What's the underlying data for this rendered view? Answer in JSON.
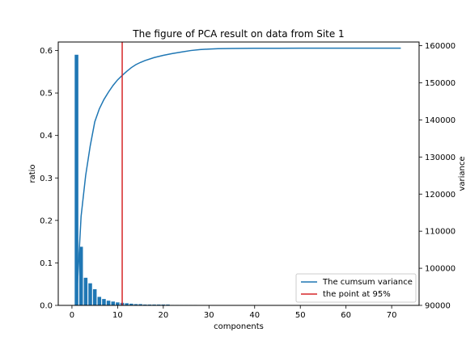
{
  "colors": {
    "bar": "#1f77b4",
    "cumsum_line": "#1f77b4",
    "vline": "#d62728",
    "axes": "#000000",
    "legend_frame": "#cccccc"
  },
  "chart_data": {
    "type": "bar",
    "title": "The figure of PCA result on data from Site 1",
    "xlabel": "components",
    "ylabel": "ratio",
    "y2label": "variance",
    "xlim": [
      -3,
      76
    ],
    "ylim": [
      0,
      0.62
    ],
    "y2lim": [
      90000,
      161000
    ],
    "xticks": [
      0,
      10,
      20,
      30,
      40,
      50,
      60,
      70
    ],
    "yticks": [
      0.0,
      0.1,
      0.2,
      0.3,
      0.4,
      0.5,
      0.6
    ],
    "y2ticks": [
      90000,
      100000,
      110000,
      120000,
      130000,
      140000,
      150000,
      160000
    ],
    "grid": false,
    "legend_position": "lower-right",
    "series": [
      {
        "name": "",
        "kind": "bar",
        "axis": "left",
        "x": [
          1,
          2,
          3,
          4,
          5,
          6,
          7,
          8,
          9,
          10,
          11,
          12,
          13,
          14,
          15,
          16,
          17,
          18,
          19,
          20,
          21,
          22,
          23,
          24,
          25,
          26,
          27
        ],
        "values": [
          0.59,
          0.138,
          0.065,
          0.052,
          0.038,
          0.02,
          0.015,
          0.011,
          0.009,
          0.007,
          0.006,
          0.005,
          0.004,
          0.003,
          0.003,
          0.002,
          0.002,
          0.002,
          0.002,
          0.002,
          0.002,
          0.001,
          0.001,
          0.001,
          0.001,
          0.001,
          0.001
        ]
      },
      {
        "name": "The cumsum variance",
        "kind": "line",
        "axis": "right",
        "x": [
          1,
          2,
          3,
          4,
          5,
          6,
          7,
          8,
          9,
          10,
          11,
          12,
          13,
          14,
          15,
          16,
          18,
          20,
          22,
          24,
          26,
          28,
          30,
          32,
          35,
          40,
          45,
          50,
          55,
          60,
          65,
          72
        ],
        "values": [
          91000,
          114000,
          125000,
          133000,
          139500,
          143000,
          145500,
          147500,
          149300,
          150800,
          152000,
          153100,
          154100,
          154900,
          155500,
          156000,
          156800,
          157400,
          157900,
          158300,
          158700,
          158950,
          159100,
          159200,
          159250,
          159300,
          159320,
          159330,
          159340,
          159350,
          159350,
          159350
        ]
      },
      {
        "name": "the point at 95%",
        "kind": "vline",
        "x": 11
      }
    ]
  }
}
